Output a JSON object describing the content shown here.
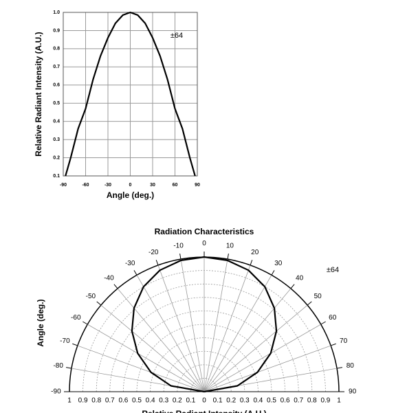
{
  "chart_data": [
    {
      "type": "line",
      "title": "Radiation Characteristics",
      "xlabel": "Angle (deg.)",
      "ylabel": "Relative Radiant Intensity (A.U.)",
      "annotation": "±64",
      "x": [
        -87,
        -80,
        -70,
        -60,
        -50,
        -40,
        -30,
        -20,
        -10,
        0,
        10,
        20,
        30,
        40,
        50,
        60,
        70,
        80,
        87
      ],
      "values": [
        0.1,
        0.2,
        0.36,
        0.47,
        0.63,
        0.76,
        0.86,
        0.94,
        0.985,
        1.0,
        0.985,
        0.94,
        0.86,
        0.76,
        0.63,
        0.47,
        0.36,
        0.2,
        0.1
      ],
      "color": "#000000",
      "xlim": [
        -90,
        90
      ],
      "ylim": [
        0.1,
        1.0
      ],
      "xticks": [
        -90,
        -60,
        -30,
        0,
        30,
        60,
        90
      ],
      "yticks": [
        0.1,
        0.2,
        0.3,
        0.4,
        0.5,
        0.6,
        0.7,
        0.8,
        0.9,
        {
          "value": 1.0,
          "label": "1.0"
        }
      ],
      "grid": true
    },
    {
      "type": "polar",
      "title": "Radiation Characteristics",
      "xlabel": "Relative Radiant Intensity (A.U.)",
      "ylabel": "Angle (deg.)",
      "annotation": "±64",
      "theta": [
        -90,
        -80,
        -70,
        -60,
        -50,
        -40,
        -30,
        -20,
        -10,
        0,
        10,
        20,
        30,
        40,
        50,
        60,
        70,
        80,
        90
      ],
      "values": [
        0,
        0.25,
        0.42,
        0.57,
        0.7,
        0.81,
        0.9,
        0.96,
        0.99,
        1.0,
        0.99,
        0.96,
        0.9,
        0.81,
        0.7,
        0.57,
        0.42,
        0.25,
        0
      ],
      "color": "#000000",
      "rlim": [
        0,
        1
      ],
      "rticks": [
        0,
        0.1,
        0.2,
        0.3,
        0.4,
        0.5,
        0.6,
        0.7,
        0.8,
        0.9,
        1
      ],
      "thetaticks": [
        -90,
        -80,
        -70,
        -60,
        -50,
        -40,
        -30,
        -20,
        -10,
        0,
        10,
        20,
        30,
        40,
        50,
        60,
        70,
        80,
        90
      ],
      "grid": true
    }
  ]
}
